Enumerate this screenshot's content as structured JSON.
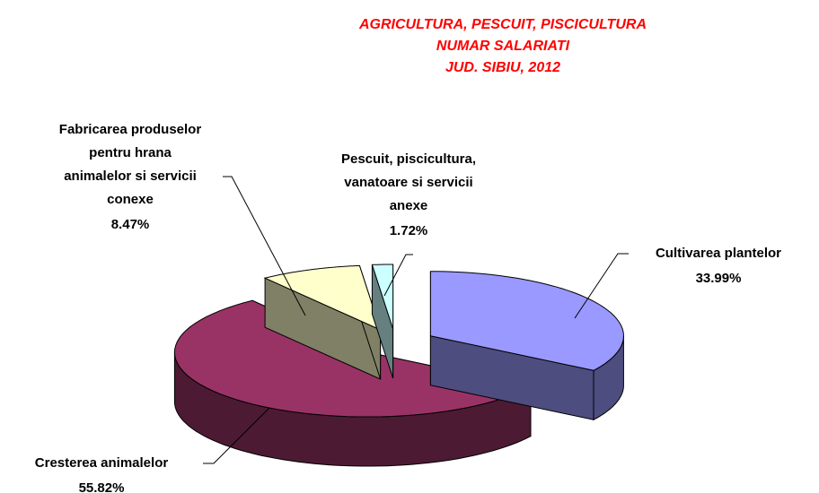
{
  "chart_data": {
    "type": "pie3d",
    "title": [
      "AGRICULTURA, PESCUIT, PISCICULTURA",
      "NUMAR SALARIATI",
      "JUD. SIBIU, 2012"
    ],
    "title_color": "#ff0000",
    "categories": [
      "Cultivarea plantelor",
      "Cresterea animalelor",
      "Fabricarea produselor pentru hrana animalelor si servicii conexe",
      "Pescuit, piscicultura, vanatoare si servicii anexe"
    ],
    "values": [
      33.99,
      55.82,
      8.47,
      1.72
    ],
    "value_labels": [
      "33.99%",
      "55.82%",
      "8.47%",
      "1.72%"
    ],
    "colors": [
      "#9999ff",
      "#993366",
      "#ffffcc",
      "#ccffff"
    ],
    "side_colors": [
      "#4d4d80",
      "#4d1a33",
      "#808066",
      "#668080"
    ]
  }
}
